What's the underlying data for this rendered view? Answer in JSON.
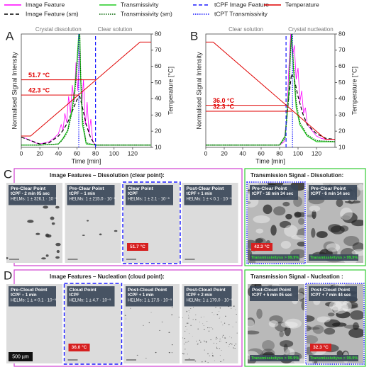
{
  "chart_data": [
    {
      "type": "line",
      "letter": "A",
      "x_label": "Time [min]",
      "y_label": "Normalised Signal Intensity",
      "y2_label": "Temperature [°C]",
      "regions": [
        "Crystal dissolution",
        "Clear solution"
      ],
      "xlim": [
        0,
        140
      ],
      "xticks": [
        0,
        20,
        40,
        60,
        80,
        100,
        120
      ],
      "ylim": [
        0,
        1
      ],
      "y2lim": [
        10,
        80
      ],
      "y2ticks": [
        10,
        20,
        30,
        40,
        50,
        60,
        70,
        80
      ],
      "series": [
        {
          "name": "Image Feature",
          "color": "#ff00ff",
          "style": "solid",
          "width": 0.8,
          "x": [
            0,
            5,
            10,
            15,
            20,
            25,
            30,
            35,
            40,
            43,
            45,
            47,
            49,
            51,
            53,
            55,
            57,
            59,
            61,
            63,
            65,
            67,
            69,
            71,
            73,
            75,
            77,
            80,
            90,
            100,
            110,
            120,
            130,
            140
          ],
          "values": [
            0.09,
            0.08,
            0.06,
            0.04,
            0.03,
            0.04,
            0.05,
            0.08,
            0.12,
            0.2,
            0.15,
            0.3,
            0.22,
            0.45,
            0.3,
            0.55,
            0.4,
            0.75,
            0.5,
            0.85,
            0.35,
            0.6,
            0.2,
            0.4,
            0.12,
            0.25,
            0.05,
            0.02,
            0.02,
            0.02,
            0.02,
            0.02,
            0.02,
            0.02
          ]
        },
        {
          "name": "Image Feature (sm)",
          "color": "#000000",
          "style": "dashed",
          "width": 1.2,
          "x": [
            0,
            10,
            20,
            30,
            40,
            45,
            50,
            55,
            60,
            63,
            66,
            70,
            75,
            80,
            100,
            140
          ],
          "values": [
            0.09,
            0.06,
            0.03,
            0.04,
            0.1,
            0.15,
            0.22,
            0.32,
            0.42,
            0.45,
            0.35,
            0.2,
            0.08,
            0.02,
            0.02,
            0.02
          ]
        },
        {
          "name": "Transmissivity",
          "color": "#22cc22",
          "style": "solid",
          "width": 1.2,
          "x": [
            0,
            20,
            40,
            45,
            50,
            55,
            58,
            60,
            62,
            63,
            64,
            66,
            70,
            80,
            140
          ],
          "values": [
            0.02,
            0.02,
            0.03,
            0.08,
            0.15,
            0.35,
            0.55,
            0.75,
            1,
            1,
            0.6,
            0.2,
            0.03,
            0.02,
            0.02
          ]
        },
        {
          "name": "Transmissivity (sm)",
          "color": "#006400",
          "style": "dotted",
          "width": 1.2,
          "x": [
            0,
            20,
            40,
            45,
            50,
            55,
            58,
            60,
            62,
            63,
            64,
            66,
            70,
            80,
            140
          ],
          "values": [
            0.02,
            0.02,
            0.03,
            0.07,
            0.14,
            0.32,
            0.5,
            0.7,
            0.95,
            1,
            0.65,
            0.25,
            0.04,
            0.02,
            0.02
          ]
        },
        {
          "name": "tCPF Image Feature",
          "color": "#1a1aff",
          "style": "dashed",
          "width": 1.2,
          "x": [
            80,
            80
          ],
          "values": [
            0,
            1
          ]
        },
        {
          "name": "tCPT Transmissivity",
          "color": "#1a1aff",
          "style": "dotted",
          "width": 1.2,
          "x": [
            62,
            62
          ],
          "values": [
            0,
            1
          ]
        },
        {
          "name": "Temperature",
          "color": "#e00000",
          "style": "solid",
          "width": 1,
          "axis": "y2",
          "x": [
            0,
            10,
            128,
            140
          ],
          "values": [
            17,
            17,
            75,
            75
          ]
        }
      ],
      "annotations": [
        {
          "label": "51.7 °C",
          "x": 80,
          "y": 51.7
        },
        {
          "label": "42.3 °C",
          "x": 62,
          "y": 42.3
        }
      ]
    },
    {
      "type": "line",
      "letter": "B",
      "x_label": "Time [min]",
      "y_label": "Normalised Signal Intensity",
      "y2_label": "Temperature [°C]",
      "regions": [
        "Clear solution",
        "Crystal nucleation"
      ],
      "xlim": [
        0,
        140
      ],
      "xticks": [
        0,
        20,
        40,
        60,
        80,
        100,
        120
      ],
      "ylim": [
        0,
        1
      ],
      "y2lim": [
        10,
        80
      ],
      "y2ticks": [
        10,
        20,
        30,
        40,
        50,
        60,
        70,
        80
      ],
      "series": [
        {
          "color": "#ff00ff",
          "style": "solid",
          "width": 0.8,
          "x": [
            0,
            20,
            40,
            60,
            80,
            85,
            88,
            90,
            92,
            94,
            96,
            98,
            100,
            102,
            104,
            106,
            108,
            110,
            115,
            120,
            125,
            130,
            135,
            140
          ],
          "values": [
            0.02,
            0.02,
            0.02,
            0.02,
            0.02,
            0.05,
            0.3,
            0.7,
            1,
            0.8,
            0.9,
            0.6,
            0.7,
            0.4,
            0.5,
            0.3,
            0.35,
            0.2,
            0.15,
            0.1,
            0.08,
            0.07,
            0.07,
            0.07
          ]
        },
        {
          "color": "#000000",
          "style": "dashed",
          "width": 1.2,
          "x": [
            0,
            80,
            86,
            90,
            93,
            96,
            100,
            105,
            110,
            120,
            130,
            140
          ],
          "values": [
            0.02,
            0.02,
            0.1,
            0.45,
            0.65,
            0.6,
            0.45,
            0.3,
            0.2,
            0.12,
            0.08,
            0.07
          ]
        },
        {
          "color": "#22cc22",
          "style": "solid",
          "width": 1.2,
          "x": [
            0,
            80,
            86,
            90,
            92,
            93,
            95,
            98,
            102,
            110,
            120,
            140
          ],
          "values": [
            0.02,
            0.02,
            0.1,
            0.5,
            0.9,
            1,
            0.7,
            0.35,
            0.2,
            0.1,
            0.05,
            0.05
          ]
        },
        {
          "color": "#006400",
          "style": "dotted",
          "width": 1.2,
          "x": [
            0,
            80,
            86,
            90,
            92,
            93,
            95,
            98,
            102,
            110,
            120,
            140
          ],
          "values": [
            0.02,
            0.02,
            0.08,
            0.45,
            0.85,
            1,
            0.75,
            0.4,
            0.22,
            0.11,
            0.06,
            0.05
          ]
        },
        {
          "color": "#1a1aff",
          "style": "dashed",
          "width": 1.2,
          "x": [
            87,
            87
          ],
          "values": [
            0,
            1
          ]
        },
        {
          "color": "#1a1aff",
          "style": "dotted",
          "width": 1.2,
          "x": [
            94,
            94
          ],
          "values": [
            0,
            1
          ]
        },
        {
          "color": "#e00000",
          "style": "solid",
          "width": 1,
          "axis": "y2",
          "x": [
            0,
            8,
            130,
            140
          ],
          "values": [
            75,
            75,
            15,
            15
          ]
        }
      ],
      "annotations": [
        {
          "label": "36.0 °C",
          "x": 87,
          "y": 36.0
        },
        {
          "label": "32.3 °C",
          "x": 94,
          "y": 32.3
        }
      ]
    }
  ],
  "panels": [
    {
      "letter": "C",
      "sections": [
        {
          "title": "Image Features – Dissolution (clear point):",
          "color": "#d040d0",
          "tiles": [
            {
              "lines": [
                "Pre-Clear Point",
                "tCPF - 2 min 05 sec",
                "HELMs: 1 ± 326.1 · 10⁻⁵"
              ]
            },
            {
              "lines": [
                "Pre-Clear Point",
                "tCPF − 1 min",
                "HELMs: 1 ± 215.0 · 10⁻⁵"
              ]
            },
            {
              "lines": [
                "Clear Point",
                "tCPF",
                "HELMs: 1 ± 2.1 · 10⁻⁵"
              ],
              "temp": "51.7 °C",
              "border": "dashed"
            },
            {
              "lines": [
                "Post-Clear Point",
                "tCPF + 1 min",
                "HELMs: 1 ± < 0.1 · 10⁻⁵"
              ]
            }
          ]
        },
        {
          "title": "Transmission Signal - Dissolution:",
          "color": "#33cc33",
          "tiles": [
            {
              "lines": [
                "Pre-Clear Point",
                "tCPT - 18 min 34 sec"
              ],
              "bottom": "Transmissivityss > 99.9%",
              "temp": "42.3 °C",
              "border": "dotted"
            },
            {
              "lines": [
                "Pre-Clear Point",
                "tCPT - 6 min 14 sec"
              ],
              "bottom": "Transmissivityss > 99.9%"
            }
          ]
        }
      ]
    },
    {
      "letter": "D",
      "sections": [
        {
          "title": "Image Features – Nucleation (cloud point):",
          "color": "#d040d0",
          "tiles": [
            {
              "lines": [
                "Pre-Cloud Point",
                "tCPF − 1 min",
                "HELMs: 1 ± < 0.1 · 10⁻⁵"
              ],
              "scale": "500 µm"
            },
            {
              "lines": [
                "Cloud Point",
                "tCPF",
                "HELMs: 1 ± 4.7 · 10⁻⁵"
              ],
              "temp": "36.0 °C",
              "border": "dashed"
            },
            {
              "lines": [
                "Post-Cloud Point",
                "tCPF + 1 min",
                "HELMs: 1 ± 17.5 · 10⁻⁵"
              ]
            },
            {
              "lines": [
                "Post-Cloud Point",
                "tCPF + 2 min",
                "HELMs: 1 ± 179.0 · 10⁻⁵"
              ]
            }
          ]
        },
        {
          "title": "Transmission Signal - Nucleation :",
          "color": "#33cc33",
          "tiles": [
            {
              "lines": [
                "Post-Cloud Point",
                "tCPT + 5 min 05 sec"
              ],
              "bottom": "Transmissivityss > 99.9%"
            },
            {
              "lines": [
                "Post-Cloud Point",
                "tCPT + 7 min 44 sec"
              ],
              "bottom": "Transmissivityss < 99.9%",
              "temp": "32.3 °C",
              "border": "dotted"
            }
          ]
        }
      ]
    }
  ]
}
